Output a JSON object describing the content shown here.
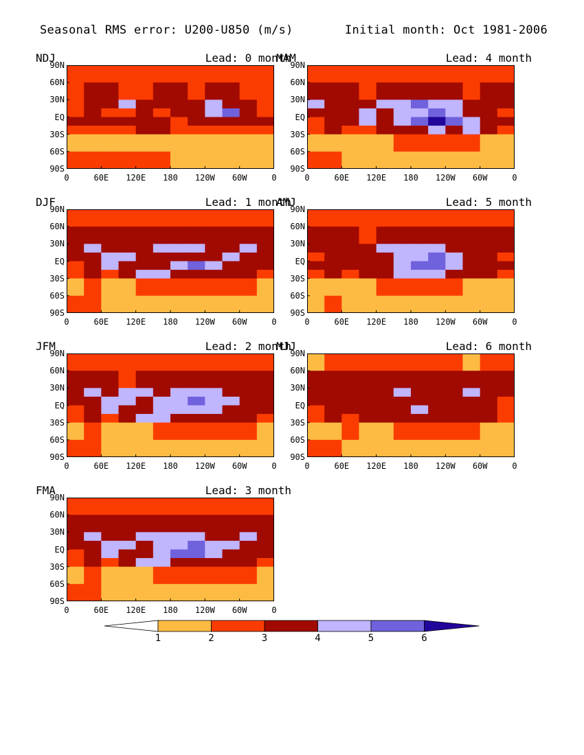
{
  "header": {
    "title": "Seasonal RMS error: U200-U850 (m/s)",
    "initial_month": "Initial month: Oct 1981-2006"
  },
  "y_tick_labels": [
    "90N",
    "60N",
    "30N",
    "EQ",
    "30S",
    "60S",
    "90S"
  ],
  "x_tick_labels": [
    "0",
    "60E",
    "120E",
    "180",
    "120W",
    "60W",
    "0"
  ],
  "colorbar": {
    "levels": [
      "1",
      "2",
      "3",
      "4",
      "5",
      "6"
    ],
    "colors": [
      "#ffffff",
      "#fdbb43",
      "#fb3c00",
      "#a10a00",
      "#c0b5ff",
      "#7062dc",
      "#22069c"
    ]
  },
  "panels": [
    {
      "season": "NDJ",
      "lead": "Lead: 0 month"
    },
    {
      "season": "MAM",
      "lead": "Lead: 4 month"
    },
    {
      "season": "DJF",
      "lead": "Lead: 1 month"
    },
    {
      "season": "AMJ",
      "lead": "Lead: 5 month"
    },
    {
      "season": "JFM",
      "lead": "Lead: 2 month"
    },
    {
      "season": "MJJ",
      "lead": "Lead: 6 month"
    },
    {
      "season": "FMA",
      "lead": "Lead: 3 month"
    }
  ],
  "chart_data": {
    "type": "heatmap",
    "title": "Seasonal RMS error: U200-U850 (m/s)",
    "subtitle": "Initial month: Oct 1981-2006",
    "units": "m/s",
    "xlabel": "",
    "ylabel": "",
    "x_ticks": [
      "0",
      "60E",
      "120E",
      "180",
      "120W",
      "60W",
      "0"
    ],
    "y_ticks": [
      "90N",
      "60N",
      "30N",
      "EQ",
      "30S",
      "60S",
      "90S"
    ],
    "contour_levels": [
      1,
      2,
      3,
      4,
      5,
      6
    ],
    "lon_centers": [
      15,
      45,
      75,
      105,
      135,
      165,
      195,
      225,
      255,
      285,
      315,
      345
    ],
    "lat_centers": [
      75,
      45,
      22.5,
      7.5,
      -7.5,
      -22.5,
      -45,
      -75
    ],
    "panels": [
      {
        "season": "NDJ",
        "lead_months": 0,
        "values": [
          [
            2.5,
            2.5,
            2.5,
            2.5,
            2.5,
            2.5,
            2.5,
            2.5,
            2.5,
            2.5,
            2.5,
            2.5
          ],
          [
            2.5,
            3.5,
            3.5,
            2.5,
            2.5,
            3.5,
            3.5,
            2.5,
            3.5,
            3.5,
            2.5,
            2.5
          ],
          [
            2.5,
            3.5,
            3.5,
            4.5,
            3.5,
            3.5,
            3.5,
            3.5,
            4.5,
            3.5,
            3.5,
            2.5
          ],
          [
            2.5,
            3.5,
            2.5,
            2.5,
            3.5,
            2.5,
            3.5,
            3.5,
            4.5,
            5.5,
            3.5,
            2.5
          ],
          [
            3.5,
            3.5,
            3.5,
            3.5,
            3.5,
            3.5,
            2.5,
            3.5,
            3.5,
            3.5,
            3.5,
            3.5
          ],
          [
            2.5,
            2.5,
            2.5,
            2.5,
            3.5,
            3.5,
            2.5,
            2.5,
            2.5,
            2.5,
            2.5,
            2.5
          ],
          [
            1.5,
            1.5,
            1.5,
            1.5,
            1.5,
            1.5,
            1.5,
            1.5,
            1.5,
            1.5,
            1.5,
            1.5
          ],
          [
            2.5,
            2.5,
            2.5,
            2.5,
            2.5,
            2.5,
            1.5,
            1.5,
            1.5,
            1.5,
            1.5,
            1.5
          ]
        ]
      },
      {
        "season": "MAM",
        "lead_months": 4,
        "values": [
          [
            2.5,
            2.5,
            2.5,
            2.5,
            2.5,
            2.5,
            2.5,
            2.5,
            2.5,
            2.5,
            2.5,
            2.5
          ],
          [
            3.5,
            3.5,
            3.5,
            2.5,
            3.5,
            3.5,
            3.5,
            3.5,
            3.5,
            2.5,
            3.5,
            3.5
          ],
          [
            4.5,
            3.5,
            3.5,
            3.5,
            4.5,
            4.5,
            5.5,
            4.5,
            4.5,
            3.5,
            3.5,
            3.5
          ],
          [
            3.5,
            3.5,
            3.5,
            4.5,
            3.5,
            4.5,
            4.5,
            5.5,
            4.5,
            3.5,
            3.5,
            2.5
          ],
          [
            2.5,
            3.5,
            3.5,
            4.5,
            3.5,
            4.5,
            5.5,
            6.5,
            5.5,
            4.5,
            3.5,
            3.5
          ],
          [
            2.5,
            3.5,
            2.5,
            2.5,
            3.5,
            3.5,
            3.5,
            4.5,
            3.5,
            4.5,
            3.5,
            2.5
          ],
          [
            1.5,
            1.5,
            1.5,
            1.5,
            1.5,
            2.5,
            2.5,
            2.5,
            2.5,
            2.5,
            1.5,
            1.5
          ],
          [
            2.5,
            2.5,
            1.5,
            1.5,
            1.5,
            1.5,
            1.5,
            1.5,
            1.5,
            1.5,
            1.5,
            1.5
          ]
        ]
      },
      {
        "season": "DJF",
        "lead_months": 1,
        "values": [
          [
            2.5,
            2.5,
            2.5,
            2.5,
            2.5,
            2.5,
            2.5,
            2.5,
            2.5,
            2.5,
            2.5,
            2.5
          ],
          [
            3.5,
            3.5,
            3.5,
            3.5,
            3.5,
            3.5,
            3.5,
            3.5,
            3.5,
            3.5,
            3.5,
            3.5
          ],
          [
            3.5,
            4.5,
            3.5,
            3.5,
            3.5,
            4.5,
            4.5,
            4.5,
            3.5,
            3.5,
            4.5,
            3.5
          ],
          [
            3.5,
            3.5,
            4.5,
            4.5,
            3.5,
            3.5,
            3.5,
            3.5,
            3.5,
            4.5,
            3.5,
            3.5
          ],
          [
            2.5,
            3.5,
            4.5,
            3.5,
            3.5,
            3.5,
            4.5,
            5.5,
            4.5,
            3.5,
            3.5,
            3.5
          ],
          [
            2.5,
            3.5,
            2.5,
            3.5,
            4.5,
            4.5,
            3.5,
            3.5,
            3.5,
            3.5,
            3.5,
            2.5
          ],
          [
            1.5,
            2.5,
            1.5,
            1.5,
            2.5,
            2.5,
            2.5,
            2.5,
            2.5,
            2.5,
            2.5,
            1.5
          ],
          [
            2.5,
            2.5,
            1.5,
            1.5,
            1.5,
            1.5,
            1.5,
            1.5,
            1.5,
            1.5,
            1.5,
            1.5
          ]
        ]
      },
      {
        "season": "AMJ",
        "lead_months": 5,
        "values": [
          [
            2.5,
            2.5,
            2.5,
            2.5,
            2.5,
            2.5,
            2.5,
            2.5,
            2.5,
            2.5,
            2.5,
            2.5
          ],
          [
            3.5,
            3.5,
            3.5,
            2.5,
            3.5,
            3.5,
            3.5,
            3.5,
            3.5,
            3.5,
            3.5,
            3.5
          ],
          [
            3.5,
            3.5,
            3.5,
            3.5,
            4.5,
            4.5,
            4.5,
            4.5,
            3.5,
            3.5,
            3.5,
            3.5
          ],
          [
            2.5,
            3.5,
            3.5,
            3.5,
            3.5,
            4.5,
            4.5,
            5.5,
            4.5,
            3.5,
            3.5,
            2.5
          ],
          [
            3.5,
            3.5,
            3.5,
            3.5,
            3.5,
            4.5,
            5.5,
            5.5,
            4.5,
            3.5,
            3.5,
            3.5
          ],
          [
            2.5,
            3.5,
            2.5,
            3.5,
            3.5,
            4.5,
            4.5,
            4.5,
            3.5,
            3.5,
            3.5,
            2.5
          ],
          [
            1.5,
            1.5,
            1.5,
            1.5,
            2.5,
            2.5,
            2.5,
            2.5,
            2.5,
            1.5,
            1.5,
            1.5
          ],
          [
            1.5,
            2.5,
            1.5,
            1.5,
            1.5,
            1.5,
            1.5,
            1.5,
            1.5,
            1.5,
            1.5,
            1.5
          ]
        ]
      },
      {
        "season": "JFM",
        "lead_months": 2,
        "values": [
          [
            2.5,
            2.5,
            2.5,
            2.5,
            2.5,
            2.5,
            2.5,
            2.5,
            2.5,
            2.5,
            2.5,
            2.5
          ],
          [
            3.5,
            3.5,
            3.5,
            2.5,
            3.5,
            3.5,
            3.5,
            3.5,
            3.5,
            3.5,
            3.5,
            3.5
          ],
          [
            3.5,
            4.5,
            3.5,
            4.5,
            4.5,
            3.5,
            4.5,
            4.5,
            4.5,
            3.5,
            3.5,
            3.5
          ],
          [
            3.5,
            3.5,
            4.5,
            4.5,
            3.5,
            4.5,
            4.5,
            5.5,
            4.5,
            4.5,
            3.5,
            3.5
          ],
          [
            2.5,
            3.5,
            4.5,
            3.5,
            3.5,
            4.5,
            4.5,
            4.5,
            4.5,
            3.5,
            3.5,
            3.5
          ],
          [
            2.5,
            3.5,
            2.5,
            3.5,
            4.5,
            4.5,
            3.5,
            3.5,
            3.5,
            3.5,
            3.5,
            2.5
          ],
          [
            1.5,
            2.5,
            1.5,
            1.5,
            1.5,
            2.5,
            2.5,
            2.5,
            2.5,
            2.5,
            2.5,
            1.5
          ],
          [
            2.5,
            2.5,
            1.5,
            1.5,
            1.5,
            1.5,
            1.5,
            1.5,
            1.5,
            1.5,
            1.5,
            1.5
          ]
        ]
      },
      {
        "season": "MJJ",
        "lead_months": 6,
        "values": [
          [
            1.5,
            2.5,
            2.5,
            2.5,
            2.5,
            2.5,
            2.5,
            2.5,
            2.5,
            1.5,
            2.5,
            2.5
          ],
          [
            3.5,
            3.5,
            3.5,
            3.5,
            3.5,
            3.5,
            3.5,
            3.5,
            3.5,
            3.5,
            3.5,
            3.5
          ],
          [
            3.5,
            3.5,
            3.5,
            3.5,
            3.5,
            4.5,
            3.5,
            3.5,
            3.5,
            4.5,
            3.5,
            3.5
          ],
          [
            3.5,
            3.5,
            3.5,
            3.5,
            3.5,
            3.5,
            3.5,
            3.5,
            3.5,
            3.5,
            3.5,
            2.5
          ],
          [
            2.5,
            3.5,
            3.5,
            3.5,
            3.5,
            3.5,
            4.5,
            3.5,
            3.5,
            3.5,
            3.5,
            2.5
          ],
          [
            2.5,
            3.5,
            2.5,
            3.5,
            3.5,
            3.5,
            3.5,
            3.5,
            3.5,
            3.5,
            3.5,
            2.5
          ],
          [
            1.5,
            1.5,
            2.5,
            1.5,
            1.5,
            2.5,
            2.5,
            2.5,
            2.5,
            2.5,
            1.5,
            1.5
          ],
          [
            2.5,
            2.5,
            1.5,
            1.5,
            1.5,
            1.5,
            1.5,
            1.5,
            1.5,
            1.5,
            1.5,
            1.5
          ]
        ]
      },
      {
        "season": "FMA",
        "lead_months": 3,
        "values": [
          [
            2.5,
            2.5,
            2.5,
            2.5,
            2.5,
            2.5,
            2.5,
            2.5,
            2.5,
            2.5,
            2.5,
            2.5
          ],
          [
            3.5,
            3.5,
            3.5,
            3.5,
            3.5,
            3.5,
            3.5,
            3.5,
            3.5,
            3.5,
            3.5,
            3.5
          ],
          [
            3.5,
            4.5,
            3.5,
            3.5,
            4.5,
            4.5,
            4.5,
            4.5,
            3.5,
            3.5,
            4.5,
            3.5
          ],
          [
            3.5,
            3.5,
            4.5,
            4.5,
            3.5,
            4.5,
            4.5,
            5.5,
            4.5,
            4.5,
            3.5,
            3.5
          ],
          [
            2.5,
            3.5,
            4.5,
            3.5,
            3.5,
            4.5,
            5.5,
            5.5,
            4.5,
            3.5,
            3.5,
            3.5
          ],
          [
            2.5,
            3.5,
            2.5,
            3.5,
            4.5,
            4.5,
            3.5,
            3.5,
            3.5,
            3.5,
            3.5,
            2.5
          ],
          [
            1.5,
            2.5,
            1.5,
            1.5,
            1.5,
            2.5,
            2.5,
            2.5,
            2.5,
            2.5,
            2.5,
            1.5
          ],
          [
            2.5,
            2.5,
            1.5,
            1.5,
            1.5,
            1.5,
            1.5,
            1.5,
            1.5,
            1.5,
            1.5,
            1.5
          ]
        ]
      }
    ]
  }
}
